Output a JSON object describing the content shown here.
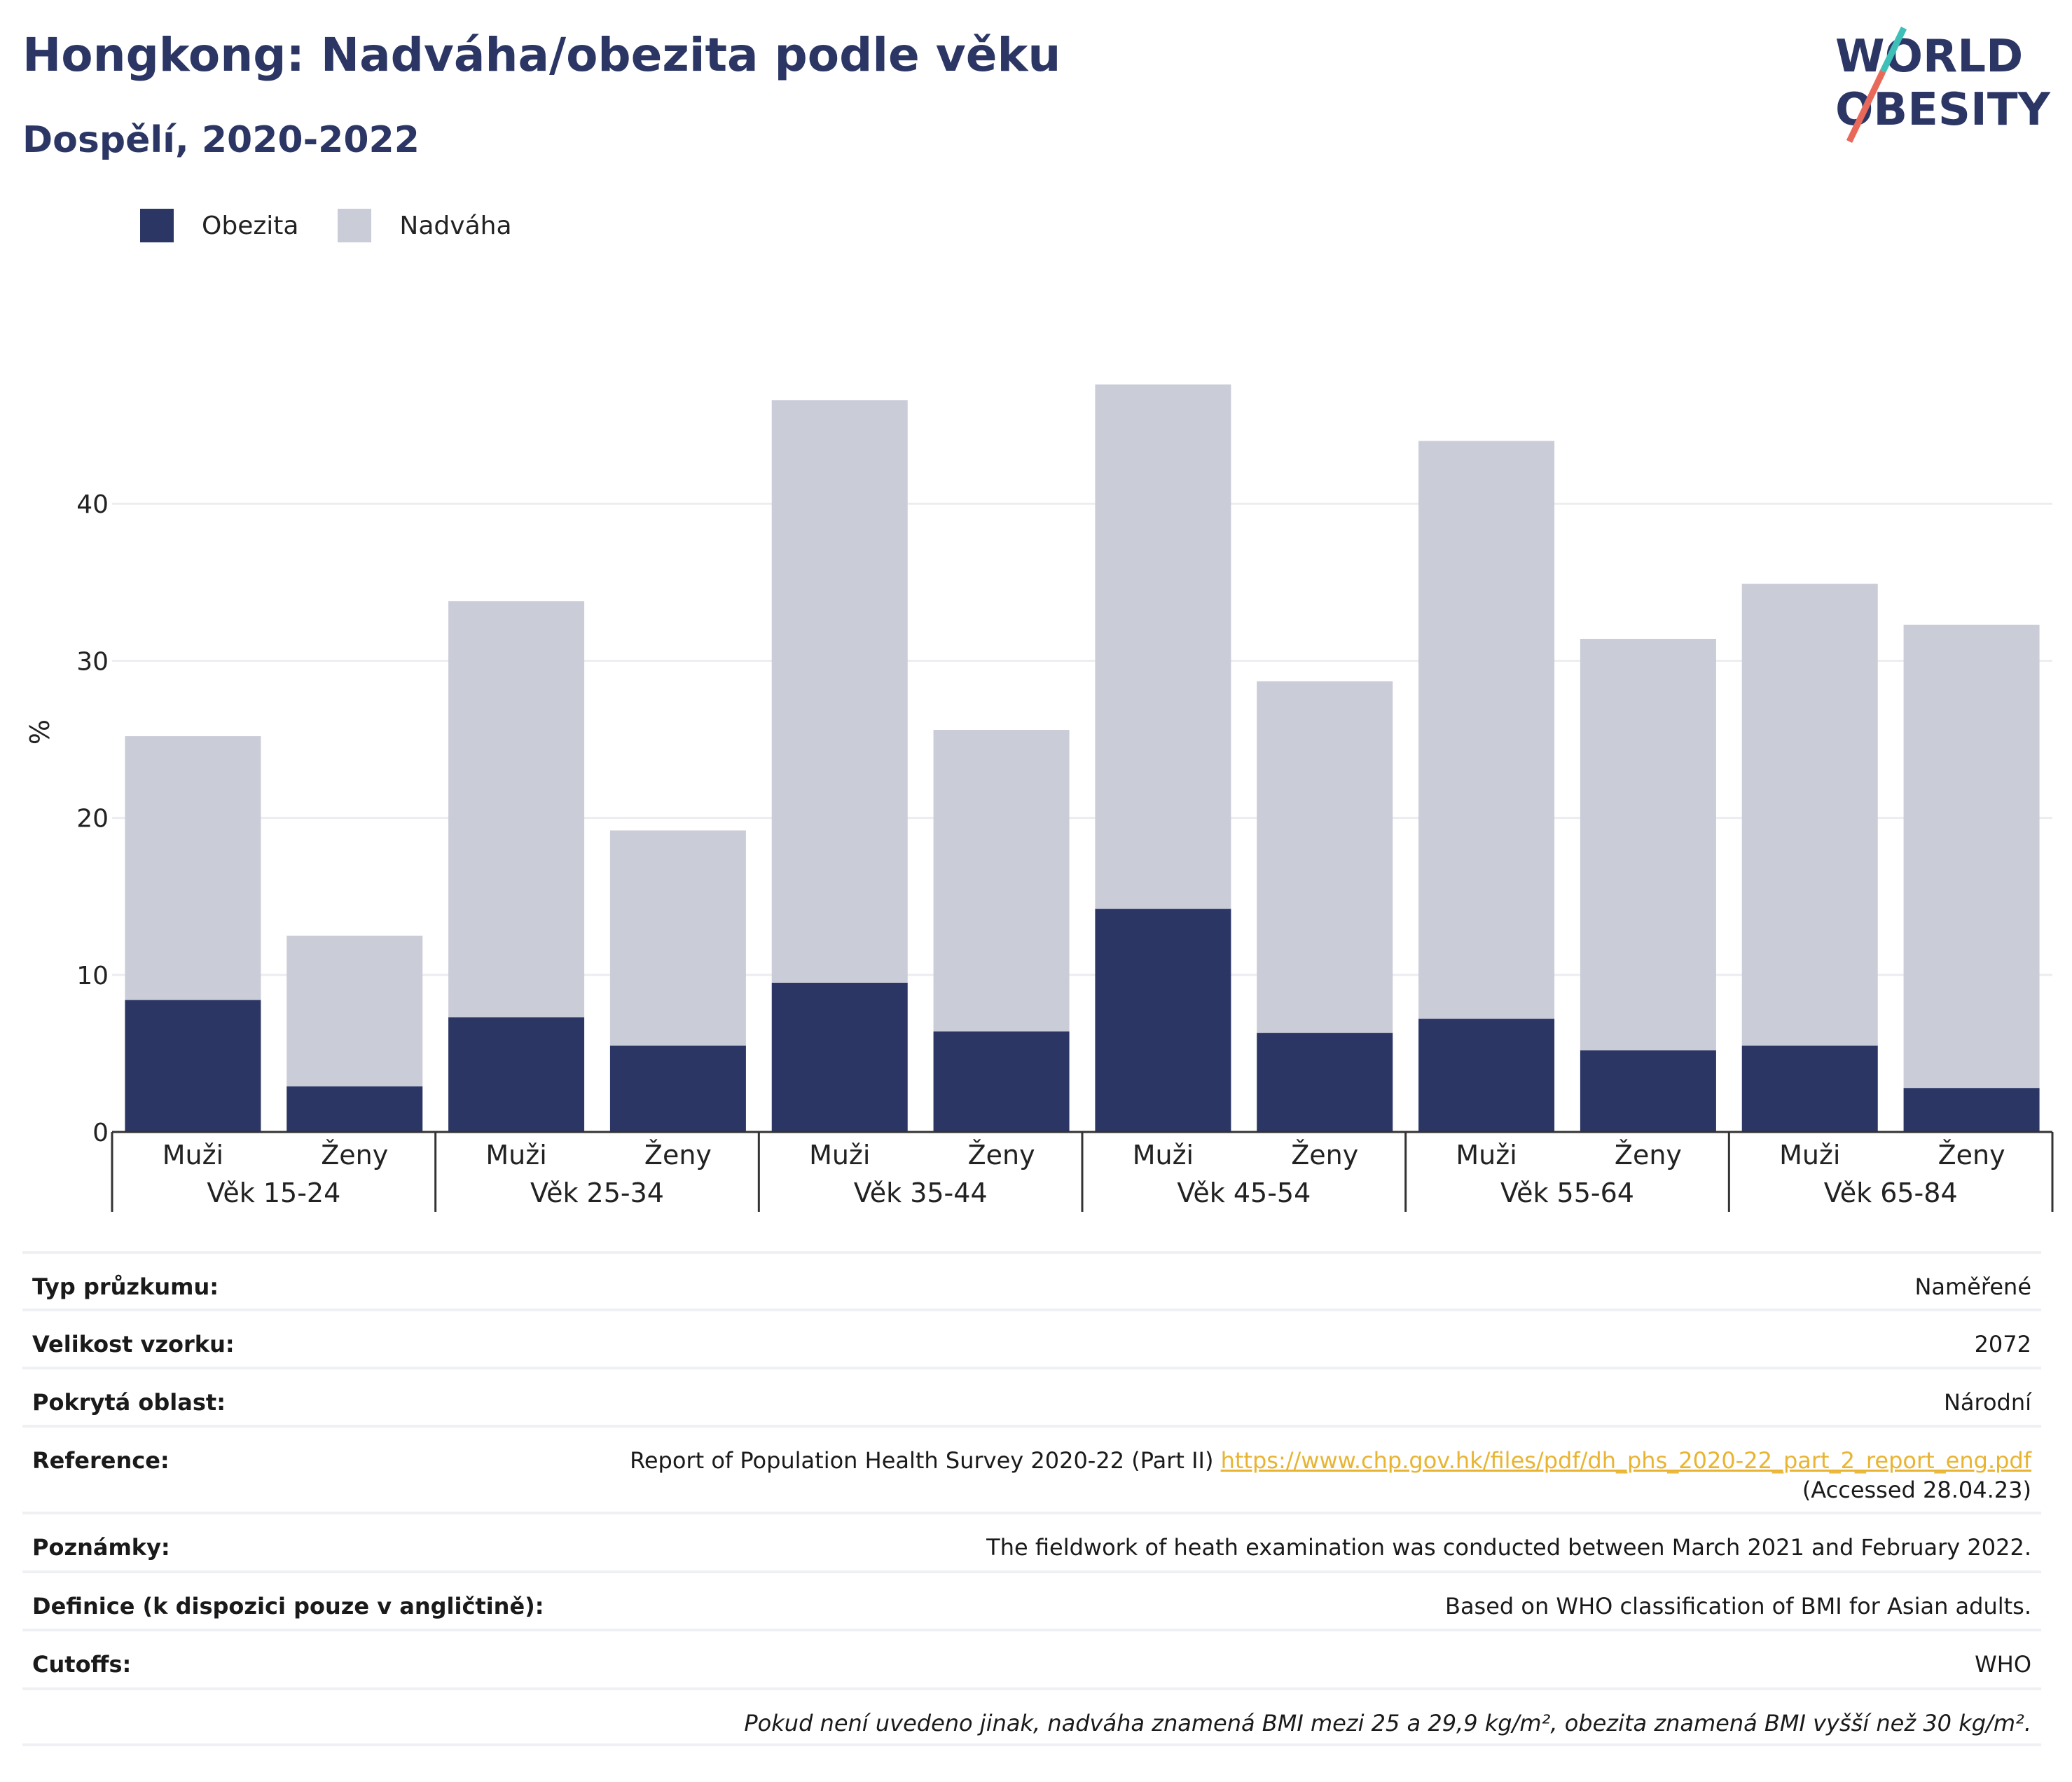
{
  "header": {
    "title": "Hongkong: Nadváha/obezita podle věku",
    "subtitle": "Dospělí, 2020-2022",
    "logo_line1": "WORLD",
    "logo_line2": "OBESITY"
  },
  "legend": [
    {
      "label": "Obezita",
      "color": "#2b3664"
    },
    {
      "label": "Nadváha",
      "color": "#caccd8"
    }
  ],
  "chart_data": {
    "type": "bar",
    "stacked": true,
    "ylabel": "%",
    "ylim": [
      0,
      52
    ],
    "yticks": [
      0,
      10,
      20,
      30,
      40
    ],
    "grid": true,
    "legend_position": "top-left",
    "groups": [
      {
        "label": "Věk 15-24",
        "categories": [
          "Muži",
          "Ženy"
        ]
      },
      {
        "label": "Věk 25-34",
        "categories": [
          "Muži",
          "Ženy"
        ]
      },
      {
        "label": "Věk 35-44",
        "categories": [
          "Muži",
          "Ženy"
        ]
      },
      {
        "label": "Věk 45-54",
        "categories": [
          "Muži",
          "Ženy"
        ]
      },
      {
        "label": "Věk 55-64",
        "categories": [
          "Muži",
          "Ženy"
        ]
      },
      {
        "label": "Věk 65-84",
        "categories": [
          "Muži",
          "Ženy"
        ]
      }
    ],
    "series": [
      {
        "name": "Obezita",
        "color": "#2b3664",
        "values": [
          8.4,
          2.9,
          7.3,
          5.5,
          9.5,
          6.4,
          14.2,
          6.3,
          7.2,
          5.2,
          5.5,
          2.8
        ]
      },
      {
        "name": "Nadváha",
        "color": "#caccd8",
        "values": [
          16.8,
          9.6,
          26.5,
          13.7,
          37.1,
          19.2,
          33.4,
          22.4,
          36.8,
          26.2,
          29.4,
          29.5
        ]
      }
    ]
  },
  "info": {
    "rows": [
      {
        "key": "Typ průzkumu:",
        "value": "Naměřené"
      },
      {
        "key": "Velikost vzorku:",
        "value": "2072"
      },
      {
        "key": "Pokrytá oblast:",
        "value": "Národní"
      }
    ],
    "reference": {
      "key": "Reference:",
      "text": "Report of Population Health Survey 2020-22 (Part II)",
      "link": "https://www.chp.gov.hk/files/pdf/dh_phs_2020-22_part_2_report_eng.pdf",
      "accessed": "(Accessed 28.04.23)"
    },
    "rows2": [
      {
        "key": "Poznámky:",
        "value": "The fieldwork of heath examination was conducted between March 2021 and February 2022."
      },
      {
        "key": "Definice (k dispozici pouze v angličtině):",
        "value": "Based on WHO classification of BMI for Asian adults."
      },
      {
        "key": "Cutoffs:",
        "value": "WHO"
      }
    ],
    "footnote": "Pokud není uvedeno jinak, nadváha znamená BMI mezi 25 a 29,9 kg/m², obezita znamená BMI vyšší než 30 kg/m²."
  }
}
